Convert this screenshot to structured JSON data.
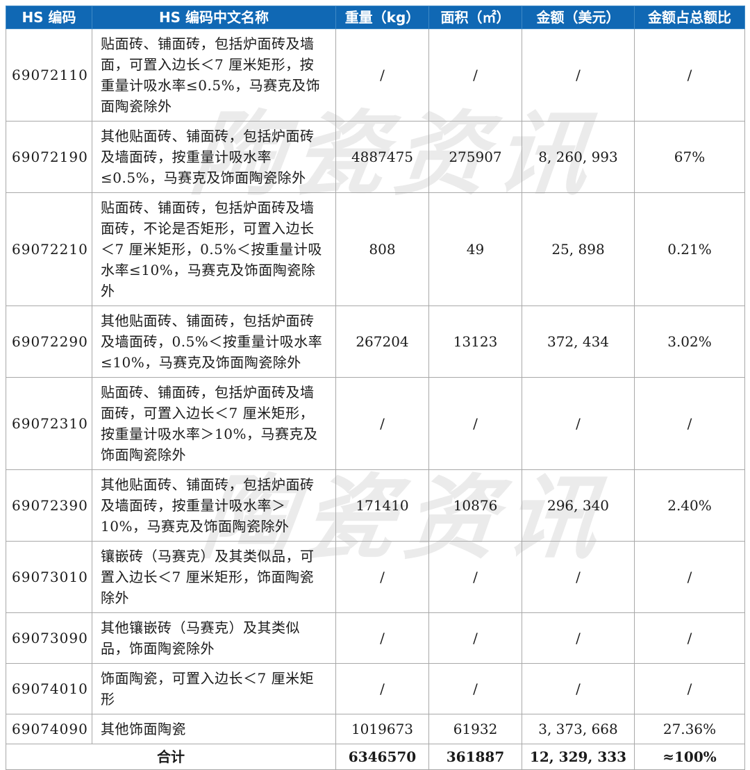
{
  "watermark": {
    "text": "陶瓷资讯"
  },
  "colors": {
    "header_bg": "#1068b4",
    "header_text": "#ffffff",
    "grid_border": "#a8a8a8",
    "body_text": "#1a1a1a",
    "watermark": "#dcdcdc"
  },
  "table": {
    "columns": [
      {
        "key": "code",
        "label": "HS 编码"
      },
      {
        "key": "name",
        "label": "HS 编码中文名称"
      },
      {
        "key": "weight",
        "label": "重量（kg）"
      },
      {
        "key": "area",
        "label": "面积（㎡）"
      },
      {
        "key": "amount",
        "label": "金额（美元）"
      },
      {
        "key": "share",
        "label": "金额占总额比"
      }
    ],
    "rows": [
      {
        "code": "69072110",
        "name": "贴面砖、铺面砖，包括炉面砖及墙面，可置入边长＜7 厘米矩形，按重量计吸水率≤0.5%，马赛克及饰面陶瓷除外",
        "weight": "/",
        "area": "/",
        "amount": "/",
        "share": "/"
      },
      {
        "code": "69072190",
        "name": "其他贴面砖、铺面砖，包括炉面砖及墙面砖，按重量计吸水率≤0.5%，马赛克及饰面陶瓷除外",
        "weight": "4887475",
        "area": "275907",
        "amount": "8, 260, 993",
        "share": "67%"
      },
      {
        "code": "69072210",
        "name": "贴面砖、铺面砖，包括炉面砖及墙面砖，不论是否矩形，可置入边长＜7 厘米矩形，0.5%＜按重量计吸水率≤10%，马赛克及饰面陶瓷除外",
        "weight": "808",
        "area": "49",
        "amount": "25, 898",
        "share": "0.21%"
      },
      {
        "code": "69072290",
        "name": "其他贴面砖、铺面砖，包括炉面砖及墙面砖，0.5%＜按重量计吸水率≤10%，马赛克及饰面陶瓷除外",
        "weight": "267204",
        "area": "13123",
        "amount": "372, 434",
        "share": "3.02%"
      },
      {
        "code": "69072310",
        "name": "贴面砖、铺面砖，包括炉面砖及墙面砖，可置入边长＜7 厘米矩形，按重量计吸水率＞10%，马赛克及饰面陶瓷除外",
        "weight": "/",
        "area": "/",
        "amount": "/",
        "share": "/"
      },
      {
        "code": "69072390",
        "name": "其他贴面砖、铺面砖，包括炉面砖及墙面砖，按重量计吸水率＞10%，马赛克及饰面陶瓷除外",
        "weight": "171410",
        "area": "10876",
        "amount": "296, 340",
        "share": "2.40%"
      },
      {
        "code": "69073010",
        "name": "镶嵌砖（马赛克）及其类似品，可置入边长＜7 厘米矩形，饰面陶瓷除外",
        "weight": "/",
        "area": "/",
        "amount": "/",
        "share": "/"
      },
      {
        "code": "69073090",
        "name": "其他镶嵌砖（马赛克）及其类似品，饰面陶瓷除外",
        "weight": "/",
        "area": "/",
        "amount": "/",
        "share": "/"
      },
      {
        "code": "69074010",
        "name": "饰面陶瓷，可置入边长＜7 厘米矩形",
        "weight": "/",
        "area": "/",
        "amount": "/",
        "share": "/"
      },
      {
        "code": "69074090",
        "name": "其他饰面陶瓷",
        "weight": "1019673",
        "area": "61932",
        "amount": "3, 373, 668",
        "share": "27.36%"
      }
    ],
    "total": {
      "label": "合计",
      "weight": "6346570",
      "area": "361887",
      "amount": "12, 329, 333",
      "share": "≈100%"
    }
  }
}
